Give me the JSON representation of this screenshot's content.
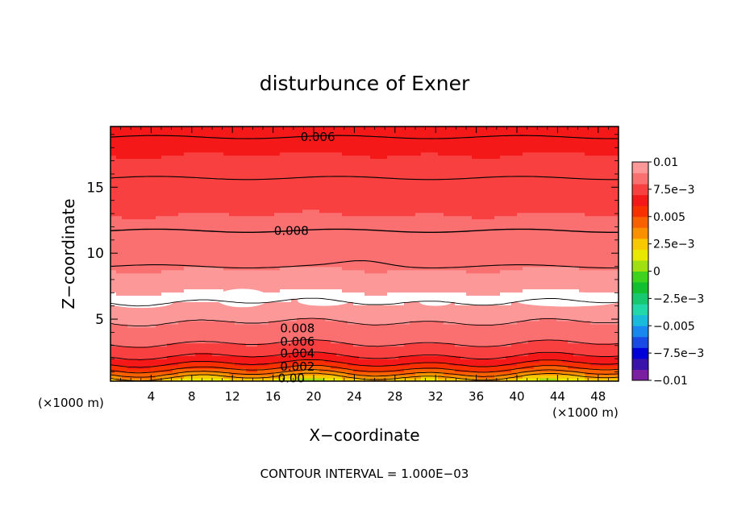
{
  "chart_data": {
    "type": "heatmap",
    "title": "disturbunce of Exner",
    "xlabel": "X−coordinate",
    "ylabel": "Z−coordinate",
    "x_unit_left": "(×1000 m)",
    "x_unit_right": "(×1000 m)",
    "footer": "CONTOUR INTERVAL = 1.000E−03",
    "xlim": [
      0,
      50
    ],
    "ylim": [
      0.3,
      19.6
    ],
    "x_ticks": [
      "4",
      "8",
      "12",
      "16",
      "20",
      "24",
      "28",
      "32",
      "36",
      "40",
      "44",
      "48"
    ],
    "x_tick_values": [
      4,
      8,
      12,
      16,
      20,
      24,
      28,
      32,
      36,
      40,
      44,
      48
    ],
    "y_ticks": [
      "5",
      "10",
      "15"
    ],
    "y_tick_values": [
      5,
      10,
      15
    ],
    "colorbar": {
      "range": [
        -0.01,
        0.01
      ],
      "labels": [
        "0.01",
        "7.5e−3",
        "0.005",
        "2.5e−3",
        "0",
        "−2.5e−3",
        "−0.005",
        "−7.5e−3",
        "−0.01"
      ],
      "label_values": [
        0.01,
        0.0075,
        0.005,
        0.0025,
        0,
        -0.0025,
        -0.005,
        -0.0075,
        -0.01
      ],
      "colors": [
        "#7a1fa0",
        "#3a14a8",
        "#0000d8",
        "#1a4ae6",
        "#1a86f0",
        "#18bcd8",
        "#20d8a8",
        "#16c870",
        "#10c030",
        "#40d020",
        "#a0e010",
        "#e8e800",
        "#f8c800",
        "#f89000",
        "#f86000",
        "#f83000",
        "#f41818",
        "#f84040",
        "#fa7070",
        "#fc9898"
      ]
    },
    "contour_labels": [
      {
        "text": "0.006",
        "x": 20.4,
        "y": 18.8
      },
      {
        "text": "0.008",
        "x": 17.8,
        "y": 11.7
      },
      {
        "text": "0.008",
        "x": 18.4,
        "y": 4.3
      },
      {
        "text": "0.006",
        "x": 18.4,
        "y": 3.3
      },
      {
        "text": "0.004",
        "x": 18.4,
        "y": 2.4
      },
      {
        "text": "0.002",
        "x": 18.4,
        "y": 1.4
      },
      {
        "text": "0.00",
        "x": 17.8,
        "y": 0.5
      }
    ]
  }
}
